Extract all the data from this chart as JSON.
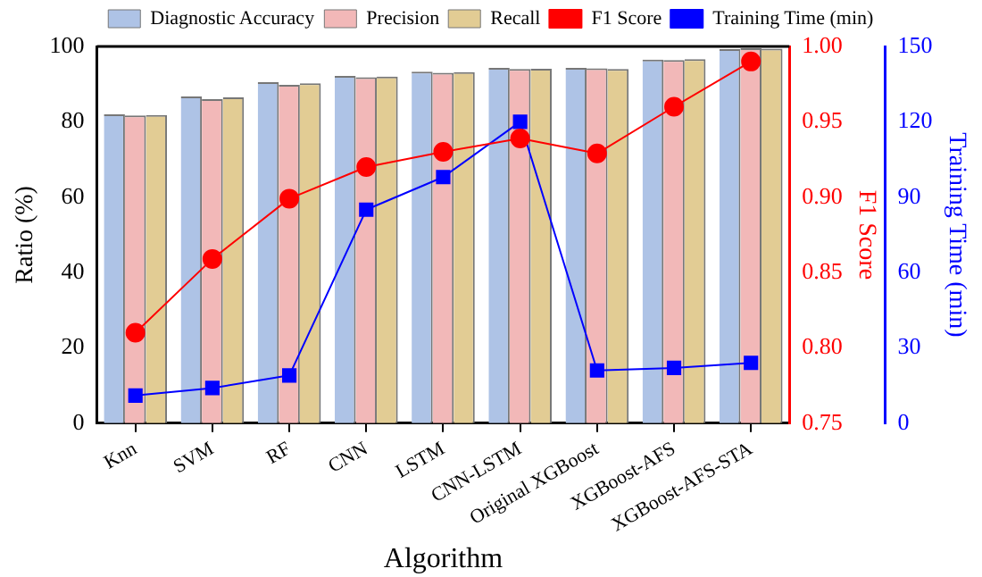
{
  "chart_data": {
    "type": "bar",
    "xlabel": "Algorithm",
    "ylabel": "Ratio (%)",
    "y2label": "F1 Score",
    "y3label": "Training Time (min)",
    "categories": [
      "Knn",
      "SVM",
      "RF",
      "CNN",
      "LSTM",
      "CNN-LSTM",
      "Original XGBoost",
      "XGBoost-AFS",
      "XGBoost-AFS-STA"
    ],
    "series": [
      {
        "name": "Diagnostic Accuracy",
        "color": "#aec3e6",
        "values": [
          82,
          86.7,
          90.5,
          92.2,
          93.3,
          94.3,
          94.3,
          96.5,
          99.3
        ]
      },
      {
        "name": "Precision",
        "color": "#f2b8b8",
        "values": [
          81.7,
          86,
          89.8,
          91.8,
          93,
          94,
          94.2,
          96.4,
          99.5
        ]
      },
      {
        "name": "Recall",
        "color": "#e2cc94",
        "values": [
          81.8,
          86.5,
          90.2,
          92,
          93.2,
          94.1,
          94,
          96.6,
          99.4
        ]
      },
      {
        "name": "F1 Score",
        "type": "line",
        "axis": "y2",
        "marker": "circle",
        "color": "#ff0000",
        "values": [
          0.81,
          0.859,
          0.899,
          0.92,
          0.93,
          0.939,
          0.929,
          0.96,
          0.99
        ]
      },
      {
        "name": "Training Time (min)",
        "type": "line",
        "axis": "y3",
        "marker": "square",
        "color": "#0000ff",
        "values": [
          11,
          14,
          19,
          85,
          98,
          120,
          21,
          22,
          24
        ]
      }
    ],
    "ylim": [
      0,
      100
    ],
    "yticks": [
      0,
      20,
      40,
      60,
      80,
      100
    ],
    "y2lim": [
      0.75,
      1
    ],
    "y2ticks": [
      0.75,
      {
        "value": 0.8,
        "label": "0.80"
      },
      0.85,
      {
        "value": 0.9,
        "label": "0.90"
      },
      0.95,
      {
        "value": 1,
        "label": "1.00"
      }
    ],
    "y3lim": [
      0,
      150
    ],
    "y3ticks": [
      0,
      30,
      60,
      90,
      120,
      150
    ],
    "legend": "top",
    "grid": false
  }
}
